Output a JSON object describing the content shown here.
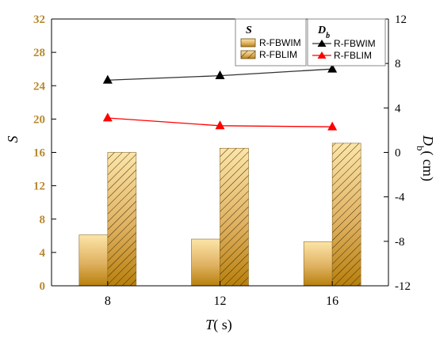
{
  "chart_data": {
    "type": "bar+line",
    "categories": [
      "8",
      "12",
      "16"
    ],
    "xlabel": {
      "var": "T",
      "unit": "( s)"
    },
    "y_left": {
      "label": "S",
      "range": [
        0,
        32
      ],
      "ticks": [
        "0",
        "4",
        "8",
        "12",
        "16",
        "20",
        "24",
        "28",
        "32"
      ],
      "color": "#b8892e"
    },
    "y_right": {
      "label_var": "D",
      "label_sub": "b",
      "label_unit": "( cm)",
      "range": [
        -12,
        12
      ],
      "ticks": [
        "-12",
        "-8",
        "-4",
        "0",
        "4",
        "8",
        "12"
      ]
    },
    "bar_series": [
      {
        "name": "R-FBWIM",
        "values": [
          6.1,
          5.6,
          5.3
        ],
        "pattern": "solid"
      },
      {
        "name": "R-FBLIM",
        "values": [
          16.0,
          16.5,
          17.1
        ],
        "pattern": "hatch"
      }
    ],
    "line_series": [
      {
        "name": "R-FBWIM",
        "values": [
          6.5,
          6.9,
          7.5
        ],
        "color": "#333333",
        "marker": "triangle"
      },
      {
        "name": "R-FBLIM",
        "values": [
          3.1,
          2.4,
          2.3
        ],
        "color": "#ff0000",
        "marker": "triangle"
      }
    ],
    "legend": {
      "bars_title": "S",
      "lines_title_var": "D",
      "lines_title_sub": "b",
      "placement": "top-right"
    },
    "grid": false
  }
}
